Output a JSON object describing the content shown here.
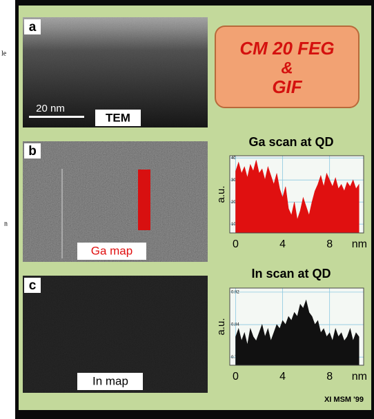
{
  "figure": {
    "margin_texts": [
      "le",
      "n"
    ],
    "panel_a": {
      "label": "a",
      "scale_bar": "20 nm",
      "tag": "TEM"
    },
    "instrument": [
      "CM 20 FEG",
      "&",
      "GIF"
    ],
    "panel_b": {
      "label": "b",
      "tag": "Ga map"
    },
    "panel_c": {
      "label": "c",
      "tag": "In map"
    },
    "footer": "XI MSM '99"
  },
  "chart_data": [
    {
      "type": "area",
      "title": "Ga  scan at QD",
      "ylabel": "a.u.",
      "xlabel": "nm",
      "color": "#e01010",
      "x": [
        0,
        0.25,
        0.5,
        0.75,
        1,
        1.25,
        1.5,
        1.75,
        2,
        2.25,
        2.5,
        2.75,
        3,
        3.25,
        3.5,
        3.75,
        4,
        4.25,
        4.5,
        4.75,
        5,
        5.25,
        5.5,
        5.75,
        6,
        6.25,
        6.5,
        6.75,
        7,
        7.25,
        7.5,
        7.75,
        8,
        8.25,
        8.5,
        8.75,
        9,
        9.25,
        9.5,
        9.75,
        10,
        10.25,
        10.5
      ],
      "values": [
        34,
        38,
        33,
        36,
        31,
        37,
        34,
        39,
        33,
        35,
        30,
        36,
        32,
        28,
        33,
        26,
        22,
        27,
        17,
        14,
        20,
        12,
        16,
        22,
        18,
        14,
        20,
        25,
        28,
        32,
        27,
        33,
        30,
        27,
        31,
        26,
        28,
        25,
        29,
        27,
        30,
        26,
        28
      ],
      "xlim": [
        -0.5,
        10.9
      ],
      "xticks": [
        0,
        4,
        8
      ],
      "ylim": [
        6,
        41
      ],
      "yticks": [
        10,
        20,
        30,
        40
      ],
      "grid": true
    },
    {
      "type": "area",
      "title": "In  scan at QD",
      "ylabel": "a.u.",
      "xlabel": "nm",
      "color": "#111111",
      "x": [
        0,
        0.25,
        0.5,
        0.75,
        1,
        1.25,
        1.5,
        1.75,
        2,
        2.25,
        2.5,
        2.75,
        3,
        3.25,
        3.5,
        3.75,
        4,
        4.25,
        4.5,
        4.75,
        5,
        5.25,
        5.5,
        5.75,
        6,
        6.25,
        6.5,
        6.75,
        7,
        7.25,
        7.5,
        7.75,
        8,
        8.25,
        8.5,
        8.75,
        9,
        9.25,
        9.5,
        9.75,
        10,
        10.25,
        10.5
      ],
      "values": [
        0.81,
        0.83,
        0.8,
        0.82,
        0.79,
        0.83,
        0.81,
        0.8,
        0.82,
        0.84,
        0.81,
        0.83,
        0.8,
        0.82,
        0.84,
        0.83,
        0.85,
        0.84,
        0.86,
        0.85,
        0.87,
        0.86,
        0.89,
        0.88,
        0.9,
        0.87,
        0.86,
        0.84,
        0.85,
        0.82,
        0.83,
        0.81,
        0.82,
        0.8,
        0.83,
        0.81,
        0.82,
        0.8,
        0.81,
        0.83,
        0.8,
        0.82,
        0.81
      ],
      "xlim": [
        -0.5,
        10.9
      ],
      "xticks": [
        0,
        4,
        8
      ],
      "ylim": [
        0.74,
        0.93
      ],
      "yticks": [
        0.76,
        0.84,
        0.92
      ],
      "grid": true
    }
  ]
}
